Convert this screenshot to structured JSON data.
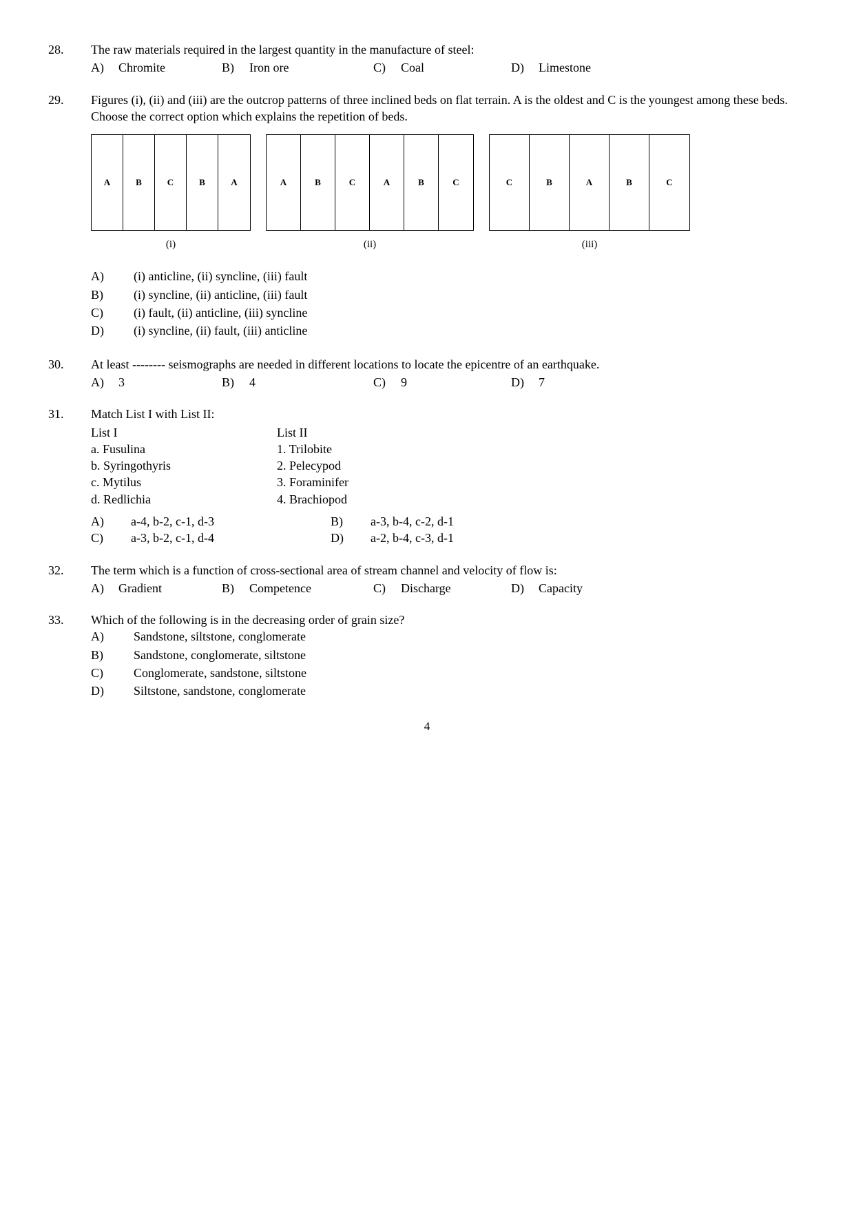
{
  "q28": {
    "num": "28.",
    "stem": "The raw materials required in the largest quantity in the manufacture of steel:",
    "opts": {
      "A": {
        "l": "A)",
        "t": "Chromite"
      },
      "B": {
        "l": "B)",
        "t": "Iron ore"
      },
      "C": {
        "l": "C)",
        "t": "Coal"
      },
      "D": {
        "l": "D)",
        "t": "Limestone"
      }
    }
  },
  "q29": {
    "num": "29.",
    "stem": "Figures (i), (ii) and (iii) are the outcrop patterns of three inclined beds on flat terrain. A is the oldest and C is the youngest among these beds. Choose the correct option which explains the repetition of beds.",
    "diagrams": {
      "d1": {
        "cells": [
          "A",
          "B",
          "C",
          "B",
          "A"
        ],
        "label": "(i)"
      },
      "d2": {
        "cells": [
          "A",
          "B",
          "C",
          "A",
          "B",
          "C"
        ],
        "label": "(ii)"
      },
      "d3": {
        "cells": [
          "C",
          "B",
          "A",
          "B",
          "C"
        ],
        "label": "(iii)"
      }
    },
    "subopts": {
      "A": {
        "l": "A)",
        "t": "(i) anticline, (ii) syncline, (iii) fault"
      },
      "B": {
        "l": "B)",
        "t": "(i) syncline, (ii) anticline, (iii) fault"
      },
      "C": {
        "l": "C)",
        "t": "(i) fault, (ii) anticline, (iii) syncline"
      },
      "D": {
        "l": "D)",
        "t": "(i) syncline, (ii) fault, (iii) anticline"
      }
    }
  },
  "q30": {
    "num": "30.",
    "stem": "At least -------- seismographs are needed in different locations to locate the epicentre of an earthquake.",
    "opts": {
      "A": {
        "l": "A)",
        "t": "3"
      },
      "B": {
        "l": "B)",
        "t": "4"
      },
      "C": {
        "l": "C)",
        "t": "9"
      },
      "D": {
        "l": "D)",
        "t": "7"
      }
    }
  },
  "q31": {
    "num": "31.",
    "stem": "Match List I with List II:",
    "list1": {
      "head": "List I",
      "items": [
        "a. Fusulina",
        "b. Syringothyris",
        "c. Mytilus",
        "d. Redlichia"
      ]
    },
    "list2": {
      "head": "List II",
      "items": [
        "1.  Trilobite",
        "2.  Pelecypod",
        "3.  Foraminifer",
        "4.  Brachiopod"
      ]
    },
    "opts": {
      "A": {
        "l": "A)",
        "t": "a-4, b-2, c-1, d-3"
      },
      "B": {
        "l": "B)",
        "t": "a-3, b-4, c-2, d-1"
      },
      "C": {
        "l": "C)",
        "t": "a-3, b-2, c-1, d-4"
      },
      "D": {
        "l": "D)",
        "t": "a-2, b-4, c-3, d-1"
      }
    }
  },
  "q32": {
    "num": "32.",
    "stem": "The term which is a function of cross-sectional area of stream channel and velocity of flow is:",
    "opts": {
      "A": {
        "l": "A)",
        "t": "Gradient"
      },
      "B": {
        "l": "B)",
        "t": "Competence"
      },
      "C": {
        "l": "C)",
        "t": "Discharge"
      },
      "D": {
        "l": "D)",
        "t": "Capacity"
      }
    }
  },
  "q33": {
    "num": "33.",
    "stem": "Which of the following is in the decreasing order of grain size?",
    "subopts": {
      "A": {
        "l": "A)",
        "t": "Sandstone, siltstone, conglomerate"
      },
      "B": {
        "l": "B)",
        "t": "Sandstone, conglomerate, siltstone"
      },
      "C": {
        "l": "C)",
        "t": "Conglomerate, sandstone, siltstone"
      },
      "D": {
        "l": "D)",
        "t": "Siltstone, sandstone, conglomerate"
      }
    }
  },
  "pageNum": "4"
}
